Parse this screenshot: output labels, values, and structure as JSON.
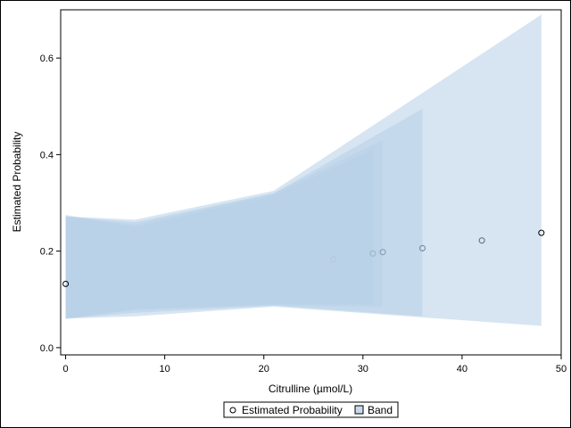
{
  "chart_data": {
    "type": "area",
    "xlabel": "Citrulline (µmol/L)",
    "ylabel": "Estimated Probability",
    "xlim": [
      -0.5,
      50
    ],
    "ylim": [
      -0.015,
      0.7
    ],
    "xticks": [
      0,
      10,
      20,
      30,
      40,
      50
    ],
    "yticks": [
      0.0,
      0.2,
      0.4,
      0.6
    ],
    "ytick_labels": [
      "0.0",
      "0.2",
      "0.4",
      "0.6"
    ],
    "legend": {
      "position": "bottom-center",
      "items": [
        {
          "label": "Estimated Probability",
          "marker": "circle"
        },
        {
          "label": "Band",
          "marker": "square"
        }
      ]
    },
    "band_color": "#b7cfe8",
    "band_opacity": 0.55,
    "bands": [
      {
        "x_end": 31,
        "lower": [
          [
            0,
            0.06
          ],
          [
            7,
            0.08
          ],
          [
            21,
            0.09
          ],
          [
            31,
            0.09
          ]
        ],
        "upper": [
          [
            0,
            0.275
          ],
          [
            7,
            0.25
          ],
          [
            21,
            0.315
          ],
          [
            31,
            0.41
          ]
        ]
      },
      {
        "x_end": 32,
        "lower": [
          [
            0,
            0.06
          ],
          [
            7,
            0.078
          ],
          [
            21,
            0.088
          ],
          [
            32,
            0.085
          ]
        ],
        "upper": [
          [
            0,
            0.27
          ],
          [
            7,
            0.255
          ],
          [
            21,
            0.32
          ],
          [
            32,
            0.43
          ]
        ]
      },
      {
        "x_end": 36,
        "lower": [
          [
            0,
            0.06
          ],
          [
            7,
            0.072
          ],
          [
            21,
            0.087
          ],
          [
            36,
            0.065
          ]
        ],
        "upper": [
          [
            0,
            0.272
          ],
          [
            7,
            0.26
          ],
          [
            21,
            0.32
          ],
          [
            36,
            0.495
          ]
        ]
      },
      {
        "x_end": 48,
        "lower": [
          [
            0,
            0.06
          ],
          [
            7,
            0.065
          ],
          [
            21,
            0.085
          ],
          [
            48,
            0.045
          ]
        ],
        "upper": [
          [
            0,
            0.272
          ],
          [
            7,
            0.265
          ],
          [
            21,
            0.325
          ],
          [
            48,
            0.69
          ]
        ]
      }
    ],
    "series": [
      {
        "name": "Estimated Probability",
        "x": [
          0,
          27,
          31,
          32,
          36,
          42,
          48
        ],
        "y": [
          0.132,
          0.183,
          0.195,
          0.198,
          0.206,
          0.222,
          0.238
        ],
        "marker_colors": [
          "#000000",
          "#b9c7d4",
          "#9fb0c2",
          "#8395aa",
          "#6f8198",
          "#53647a",
          "#000000"
        ]
      }
    ]
  }
}
